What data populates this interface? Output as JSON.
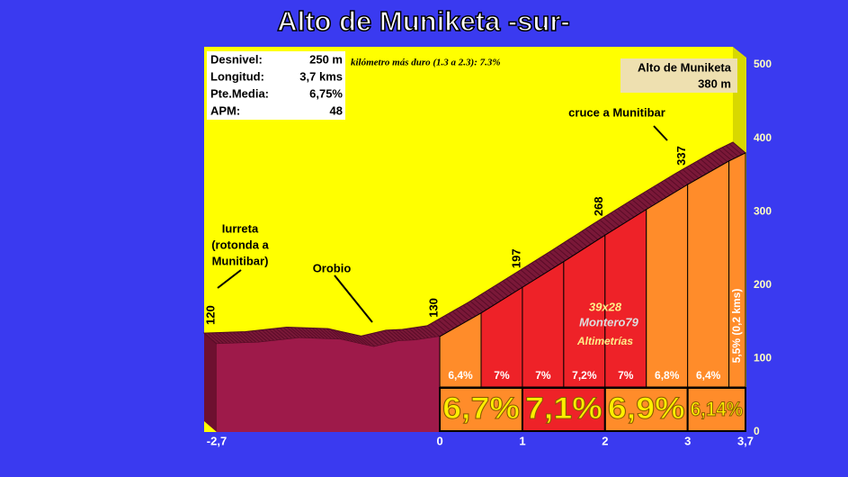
{
  "chart_data": {
    "type": "profile",
    "title": "Alto de Muniketa -sur-",
    "info": [
      {
        "label": "Desnivel:",
        "value": "250 m"
      },
      {
        "label": "Longitud:",
        "value": "3,7 kms"
      },
      {
        "label": "Pte.Media:",
        "value": "6,75%"
      },
      {
        "label": "APM:",
        "value": "48"
      }
    ],
    "annotation": "kilómetro más duro (1.3 a 2.3): 7.3%",
    "summit": {
      "name": "Alto de Muniketa",
      "elevation": "380 m"
    },
    "places": [
      {
        "lines": [
          "Iurreta",
          "(rotonda a",
          "Munitibar)"
        ]
      },
      {
        "lines": [
          "Orobio"
        ]
      },
      {
        "lines": [
          "cruce a Munitibar"
        ]
      }
    ],
    "credits": [
      "39x28",
      "Montero79",
      "Altimetrías"
    ],
    "x": [
      -2.7,
      -2.2,
      -1.7,
      -1.2,
      -0.8,
      -0.5,
      -0.3,
      0,
      0.5,
      1,
      1.5,
      2,
      2.5,
      3,
      3.5,
      3.7
    ],
    "values": [
      120,
      122,
      128,
      126,
      116,
      124,
      125,
      130,
      162,
      197,
      232,
      268,
      303,
      337,
      369,
      380
    ],
    "color": "#9e1a4a",
    "marked_x": [
      -2.7,
      0,
      1,
      2,
      3
    ],
    "marked_heights": [
      120,
      130,
      197,
      268,
      337
    ],
    "segments": {
      "bins": [
        0,
        0.5,
        1,
        1.5,
        2,
        2.5,
        3,
        3.5,
        3.7
      ],
      "values": [
        6.4,
        7,
        7,
        7.2,
        7,
        6.8,
        6.4,
        5.5
      ],
      "value_labels": [
        "6,4%",
        "7%",
        "7%",
        "7,2%",
        "7%",
        "6,8%",
        "6,4%",
        "5,5%  (0,2 kms)"
      ],
      "colors": [
        "#ff8c2a",
        "#ee2228",
        "#ee2228",
        "#ee2228",
        "#ee2228",
        "#ff8c2a",
        "#ff8c2a",
        "#ff8c2a"
      ]
    },
    "km": {
      "bins": [
        0,
        1,
        2,
        3,
        3.7
      ],
      "values": [
        6.7,
        7.1,
        6.9,
        6.14
      ],
      "value_labels": [
        "6,7%",
        "7,1%",
        "6,9%",
        "6,14%"
      ],
      "colors": [
        "#ff8c2a",
        "#ee2228",
        "#ff8c2a",
        "#ff8c2a"
      ]
    },
    "xlim": [
      -2.7,
      3.7
    ],
    "xticks": [
      {
        "value": -2.7,
        "label": "-2,7"
      },
      0,
      1,
      2,
      3,
      {
        "value": 3.7,
        "label": "3,7"
      }
    ],
    "ylim": [
      0,
      500
    ],
    "yticks": [
      0,
      100,
      200,
      300,
      400,
      500
    ]
  }
}
